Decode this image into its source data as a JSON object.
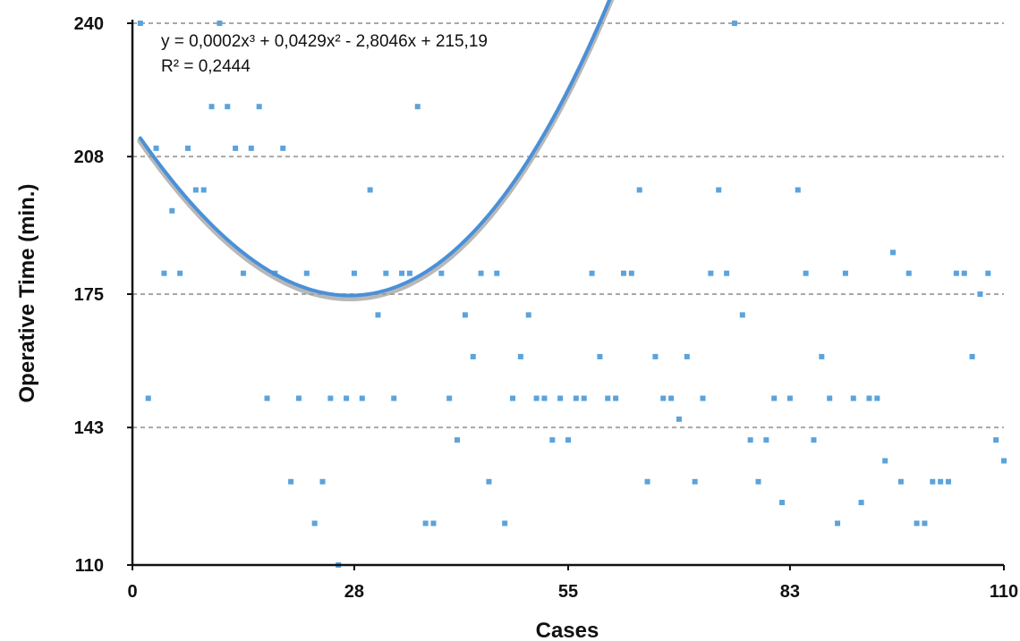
{
  "chart_data": {
    "type": "scatter",
    "title": "",
    "xlabel": "Cases",
    "ylabel": "Operative Time (min.)",
    "xlim": [
      0,
      110
    ],
    "ylim": [
      110,
      240
    ],
    "x_ticks": [
      "0",
      "28",
      "55",
      "83",
      "110"
    ],
    "x_tick_values": [
      0,
      28,
      55,
      83,
      110
    ],
    "y_ticks": [
      "110",
      "143",
      "175",
      "208",
      "240"
    ],
    "y_tick_values": [
      110,
      143,
      175,
      208,
      240
    ],
    "grid": "horizontal dashed",
    "point_color": "#5ba3dc",
    "trendline_color": "#4a90d9",
    "trendline": {
      "type": "polynomial-3",
      "equation": "y = 0,0002x³ + 0,0429x² - 2,8046x + 215,19",
      "r_squared": "R² = 0,2444",
      "x_range": [
        1,
        110
      ]
    },
    "points": [
      [
        1,
        240
      ],
      [
        2,
        150
      ],
      [
        3,
        210
      ],
      [
        4,
        180
      ],
      [
        5,
        195
      ],
      [
        6,
        180
      ],
      [
        7,
        210
      ],
      [
        8,
        200
      ],
      [
        9,
        200
      ],
      [
        10,
        220
      ],
      [
        11,
        240
      ],
      [
        12,
        220
      ],
      [
        13,
        210
      ],
      [
        14,
        180
      ],
      [
        15,
        210
      ],
      [
        16,
        220
      ],
      [
        17,
        150
      ],
      [
        18,
        180
      ],
      [
        19,
        210
      ],
      [
        20,
        130
      ],
      [
        21,
        150
      ],
      [
        22,
        180
      ],
      [
        23,
        120
      ],
      [
        24,
        130
      ],
      [
        25,
        150
      ],
      [
        26,
        110
      ],
      [
        27,
        150
      ],
      [
        28,
        180
      ],
      [
        29,
        150
      ],
      [
        30,
        200
      ],
      [
        31,
        170
      ],
      [
        32,
        180
      ],
      [
        33,
        150
      ],
      [
        34,
        180
      ],
      [
        35,
        180
      ],
      [
        36,
        220
      ],
      [
        37,
        120
      ],
      [
        38,
        120
      ],
      [
        39,
        180
      ],
      [
        40,
        150
      ],
      [
        41,
        140
      ],
      [
        42,
        170
      ],
      [
        43,
        160
      ],
      [
        44,
        180
      ],
      [
        45,
        130
      ],
      [
        46,
        180
      ],
      [
        47,
        120
      ],
      [
        48,
        150
      ],
      [
        49,
        160
      ],
      [
        50,
        170
      ],
      [
        51,
        150
      ],
      [
        52,
        150
      ],
      [
        53,
        140
      ],
      [
        54,
        150
      ],
      [
        55,
        140
      ],
      [
        56,
        150
      ],
      [
        57,
        150
      ],
      [
        58,
        180
      ],
      [
        59,
        160
      ],
      [
        60,
        150
      ],
      [
        61,
        150
      ],
      [
        62,
        180
      ],
      [
        63,
        180
      ],
      [
        64,
        200
      ],
      [
        65,
        130
      ],
      [
        66,
        160
      ],
      [
        67,
        150
      ],
      [
        68,
        150
      ],
      [
        69,
        145
      ],
      [
        70,
        160
      ],
      [
        71,
        130
      ],
      [
        72,
        150
      ],
      [
        73,
        180
      ],
      [
        74,
        200
      ],
      [
        75,
        180
      ],
      [
        76,
        240
      ],
      [
        77,
        170
      ],
      [
        78,
        140
      ],
      [
        79,
        130
      ],
      [
        80,
        140
      ],
      [
        81,
        150
      ],
      [
        82,
        125
      ],
      [
        83,
        150
      ],
      [
        84,
        200
      ],
      [
        85,
        180
      ],
      [
        86,
        140
      ],
      [
        87,
        160
      ],
      [
        88,
        150
      ],
      [
        89,
        120
      ],
      [
        90,
        180
      ],
      [
        91,
        150
      ],
      [
        92,
        125
      ],
      [
        93,
        150
      ],
      [
        94,
        150
      ],
      [
        95,
        135
      ],
      [
        96,
        185
      ],
      [
        97,
        130
      ],
      [
        98,
        180
      ],
      [
        99,
        120
      ],
      [
        100,
        120
      ],
      [
        101,
        130
      ],
      [
        102,
        130
      ],
      [
        103,
        130
      ],
      [
        104,
        180
      ],
      [
        105,
        180
      ],
      [
        106,
        160
      ],
      [
        107,
        175
      ],
      [
        108,
        180
      ],
      [
        109,
        140
      ],
      [
        110,
        135
      ]
    ]
  }
}
